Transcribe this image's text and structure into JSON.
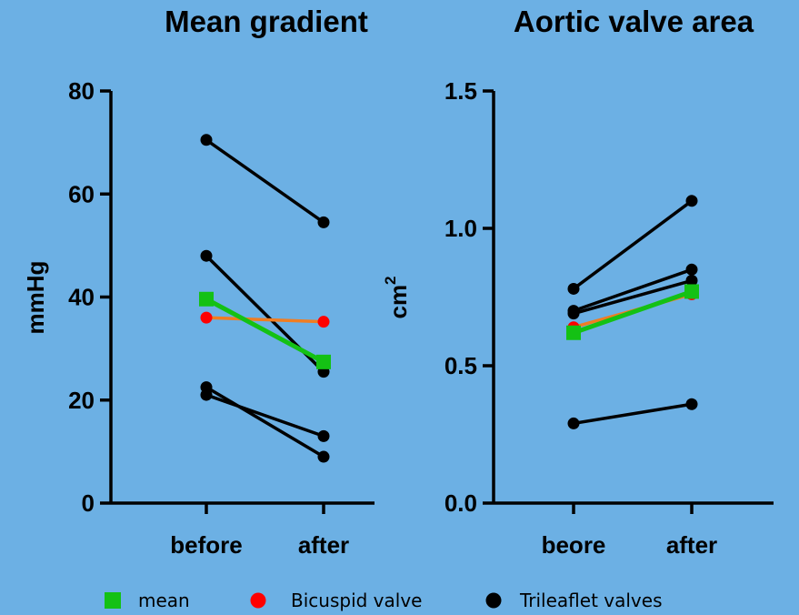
{
  "colors": {
    "background": "#6cb0e4",
    "mean": "#14c114",
    "bicuspid_marker": "#ff0000",
    "bicuspid_line": "#f07d22",
    "trileaflet": "#000000"
  },
  "legend": [
    {
      "label": "mean",
      "marker": "square",
      "color": "#14c114"
    },
    {
      "label": "Bicuspid valve",
      "marker": "circle",
      "color": "#ff0000"
    },
    {
      "label": "Trileaflet valves",
      "marker": "circle",
      "color": "#000000"
    }
  ],
  "chart_data": [
    {
      "type": "line",
      "title": "Mean gradient",
      "ylabel": "mmHg",
      "categories": [
        "before",
        "after"
      ],
      "ylim": [
        0,
        80
      ],
      "yticks": [
        0,
        20,
        40,
        60,
        80
      ],
      "ytick_labels": [
        "0",
        "20",
        "40",
        "60",
        "80"
      ],
      "series": [
        {
          "group": "trileaflet",
          "values": [
            70.5,
            54.5
          ]
        },
        {
          "group": "trileaflet",
          "values": [
            48,
            25.5
          ]
        },
        {
          "group": "trileaflet",
          "values": [
            22.5,
            9
          ]
        },
        {
          "group": "trileaflet",
          "values": [
            21,
            13
          ]
        },
        {
          "group": "bicuspid",
          "values": [
            36,
            35.2
          ]
        },
        {
          "group": "mean",
          "values": [
            39.6,
            27.4
          ]
        }
      ]
    },
    {
      "type": "line",
      "title": "Aortic valve area",
      "ylabel": "cm",
      "ylabel_sup": "2",
      "categories": [
        "beore",
        "after"
      ],
      "ylim": [
        0,
        1.5
      ],
      "yticks": [
        0,
        0.5,
        1.0,
        1.5
      ],
      "ytick_labels": [
        "0.0",
        "0.5",
        "1.0",
        "1.5"
      ],
      "series": [
        {
          "group": "trileaflet",
          "values": [
            0.78,
            1.1
          ]
        },
        {
          "group": "trileaflet",
          "values": [
            0.7,
            0.85
          ]
        },
        {
          "group": "trileaflet",
          "values": [
            0.69,
            0.81
          ]
        },
        {
          "group": "trileaflet",
          "values": [
            0.29,
            0.36
          ]
        },
        {
          "group": "bicuspid",
          "values": [
            0.64,
            0.76
          ]
        },
        {
          "group": "mean",
          "values": [
            0.62,
            0.77
          ]
        }
      ]
    }
  ]
}
